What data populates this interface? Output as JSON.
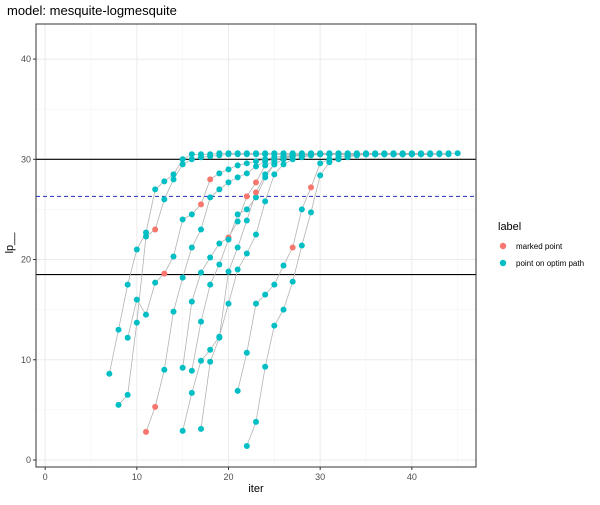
{
  "chart_data": {
    "type": "scatter",
    "title": "model: mesquite-logmesquite",
    "xlabel": "iter",
    "ylabel": "lp__",
    "xlim": [
      -1,
      47
    ],
    "ylim": [
      -0.7,
      43.5
    ],
    "xticks": [
      0,
      10,
      20,
      30,
      40
    ],
    "yticks": [
      0,
      10,
      20,
      30,
      40
    ],
    "grid": true,
    "legend_position": "right",
    "legend": {
      "title": "label",
      "items": [
        {
          "label": "marked point",
          "color": "#F8766D"
        },
        {
          "label": "point on optim path",
          "color": "#00BFC4"
        }
      ]
    },
    "hlines_solid": [
      30.0,
      18.5
    ],
    "hlines_dashed": [
      26.3
    ],
    "colors": {
      "marked": "#F8766D",
      "path": "#00BFC4",
      "path_line": "#b3b3b3",
      "hline": "#000000",
      "dashed": "#3b45c7"
    },
    "paths": [
      {
        "x": [
          7,
          8,
          9,
          10,
          11,
          12,
          13,
          14,
          15,
          16,
          17,
          18,
          19,
          20,
          21,
          22,
          23,
          24,
          25,
          26,
          27,
          28,
          29,
          30,
          31,
          32,
          33,
          34,
          35,
          36,
          37,
          38,
          39,
          40,
          41,
          42,
          43,
          44,
          45
        ],
        "y": [
          8.6,
          13.0,
          17.5,
          21.0,
          22.7,
          27.0,
          27.8,
          28.5,
          30.0,
          30.5,
          30.5,
          30.5,
          30.6,
          30.6,
          30.6,
          30.6,
          30.6,
          30.6,
          30.6,
          30.6,
          30.6,
          30.6,
          30.6,
          30.6,
          30.6,
          30.6,
          30.6,
          30.6,
          30.6,
          30.6,
          30.6,
          30.6,
          30.6,
          30.6,
          30.6,
          30.6,
          30.6,
          30.6,
          30.6
        ],
        "marked": []
      },
      {
        "x": [
          8,
          9,
          10,
          11,
          12,
          13,
          14,
          15,
          16,
          17,
          18,
          19,
          20,
          21,
          22,
          23,
          24,
          25,
          26,
          27,
          28,
          29,
          30,
          31,
          32,
          33,
          34,
          35
        ],
        "y": [
          5.5,
          6.5,
          13.7,
          22.3,
          23.0,
          26.0,
          28.0,
          29.5,
          30.0,
          30.2,
          30.3,
          30.4,
          30.5,
          30.5,
          30.5,
          30.5,
          30.5,
          30.5,
          30.5,
          30.5,
          30.5,
          30.5,
          30.5,
          30.5,
          30.5,
          30.5,
          30.5,
          30.5
        ],
        "marked": [
          4
        ]
      },
      {
        "x": [
          9,
          10,
          11,
          12,
          13,
          14,
          15,
          16,
          17,
          18,
          19,
          20,
          21,
          22,
          23,
          24,
          25,
          26,
          27,
          28,
          29,
          30,
          31,
          32,
          33,
          34,
          35,
          36,
          37,
          38,
          39,
          40,
          41,
          42,
          43,
          44
        ],
        "y": [
          12.2,
          16.0,
          14.5,
          17.7,
          18.6,
          20.3,
          24.0,
          24.5,
          25.5,
          28.0,
          28.6,
          29.0,
          29.4,
          29.6,
          29.8,
          30.0,
          30.2,
          30.3,
          30.4,
          30.4,
          30.5,
          30.5,
          30.5,
          30.5,
          30.5,
          30.5,
          30.5,
          30.5,
          30.5,
          30.5,
          30.5,
          30.5,
          30.5,
          30.5,
          30.5,
          30.5
        ],
        "marked": [
          4,
          8,
          9
        ]
      },
      {
        "x": [
          11,
          12,
          13,
          14,
          15,
          16,
          17,
          18,
          19,
          20,
          21,
          22,
          23,
          24,
          25,
          26,
          27,
          28,
          29,
          30,
          31,
          32,
          33,
          34,
          35,
          36,
          37,
          38,
          39,
          40,
          41,
          42
        ],
        "y": [
          2.8,
          5.3,
          9.0,
          14.8,
          18.2,
          21.2,
          23.0,
          26.2,
          27.0,
          27.7,
          28.2,
          28.6,
          29.3,
          29.8,
          30.0,
          30.2,
          30.4,
          30.4,
          30.5,
          30.5,
          30.5,
          30.5,
          30.5,
          30.5,
          30.5,
          30.5,
          30.5,
          30.5,
          30.5,
          30.5,
          30.5,
          30.5
        ],
        "marked": [
          0,
          1
        ]
      },
      {
        "x": [
          15,
          16,
          17,
          18,
          19,
          20,
          21,
          22,
          23,
          24,
          25,
          26,
          27,
          28,
          29,
          30,
          31,
          32,
          33,
          34,
          35,
          36,
          37,
          38,
          39,
          40
        ],
        "y": [
          9.2,
          15.8,
          18.7,
          20.2,
          21.6,
          22.2,
          23.8,
          26.3,
          27.7,
          29.4,
          29.8,
          30.2,
          30.3,
          30.4,
          30.5,
          30.5,
          30.5,
          30.5,
          30.5,
          30.5,
          30.5,
          30.5,
          30.5,
          30.5,
          30.5,
          30.5
        ],
        "marked": [
          5,
          7,
          8
        ]
      },
      {
        "x": [
          16,
          17,
          18,
          19,
          20,
          21,
          22,
          23,
          24,
          25,
          26,
          27,
          28,
          29,
          30,
          31,
          32,
          33,
          34,
          35,
          36
        ],
        "y": [
          8.9,
          13.8,
          17.5,
          19.5,
          22.0,
          24.5,
          25.0,
          26.2,
          28.2,
          29.5,
          30.0,
          30.3,
          30.4,
          30.4,
          30.5,
          30.5,
          30.5,
          30.5,
          30.5,
          30.5,
          30.5
        ],
        "marked": []
      },
      {
        "x": [
          15,
          16,
          17,
          18,
          19,
          20,
          21,
          22,
          23,
          24,
          25,
          26,
          27,
          28,
          29,
          30
        ],
        "y": [
          2.9,
          6.7,
          9.9,
          11.0,
          12.3,
          15.6,
          19.0,
          20.6,
          22.5,
          25.8,
          28.5,
          29.5,
          30.0,
          30.2,
          30.4,
          30.5
        ],
        "marked": []
      },
      {
        "x": [
          17,
          18,
          19,
          20,
          21,
          22,
          23,
          24,
          25,
          26,
          27,
          28,
          29,
          30,
          31,
          32,
          33,
          34,
          35,
          36,
          37,
          38,
          39,
          40
        ],
        "y": [
          3.1,
          9.8,
          12.2,
          18.8,
          21.2,
          23.9,
          26.7,
          28.5,
          29.5,
          30.0,
          30.3,
          30.4,
          30.5,
          30.5,
          30.5,
          30.5,
          30.5,
          30.5,
          30.5,
          30.5,
          30.5,
          30.5,
          30.5,
          30.5
        ],
        "marked": [
          6
        ]
      },
      {
        "x": [
          21,
          22,
          23,
          24,
          25,
          26,
          27,
          28,
          29,
          30,
          31,
          32,
          33,
          34,
          35,
          36,
          37,
          38,
          39,
          40,
          41,
          42
        ],
        "y": [
          6.9,
          10.7,
          15.6,
          16.5,
          17.5,
          19.4,
          21.2,
          25.0,
          27.2,
          29.6,
          30.0,
          30.2,
          30.4,
          30.4,
          30.5,
          30.5,
          30.5,
          30.5,
          30.5,
          30.5,
          30.5,
          30.5
        ],
        "marked": [
          6,
          8
        ]
      },
      {
        "x": [
          22,
          23,
          24,
          25,
          26,
          27,
          28,
          29,
          30,
          31,
          32,
          33,
          34,
          35,
          36,
          37,
          38,
          39
        ],
        "y": [
          1.4,
          3.8,
          9.3,
          13.4,
          15.0,
          17.8,
          21.4,
          24.7,
          28.4,
          29.7,
          30.0,
          30.2,
          30.4,
          30.5,
          30.5,
          30.5,
          30.5,
          30.5
        ],
        "marked": []
      }
    ]
  }
}
